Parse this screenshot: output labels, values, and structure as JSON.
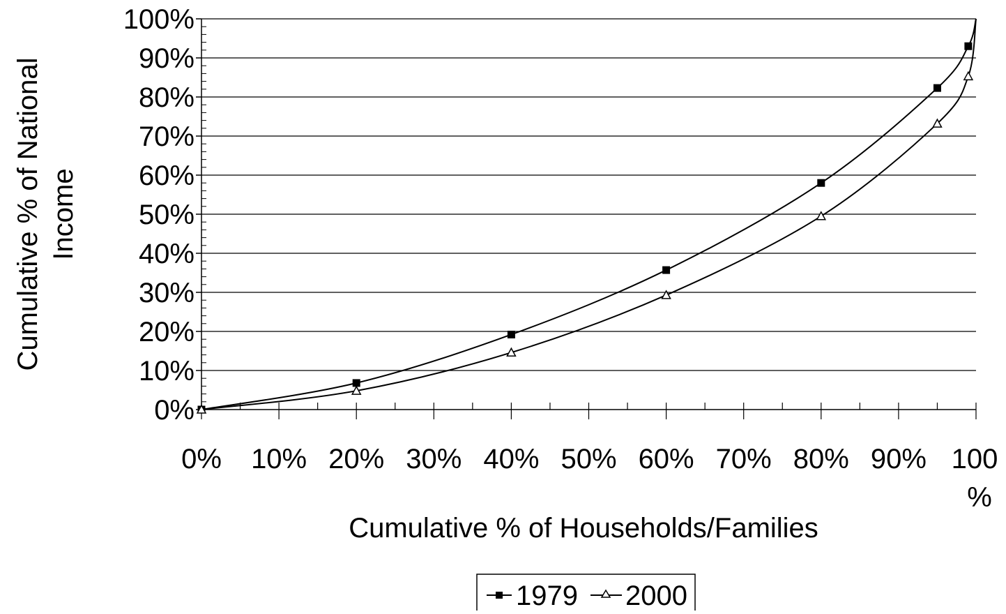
{
  "chart_data": {
    "type": "line",
    "title": "",
    "xlabel": "Cumulative % of Households/Families",
    "ylabel_line1": "Cumulative % of National",
    "ylabel_line2": "Income",
    "xlim": [
      0,
      100
    ],
    "ylim": [
      0,
      100
    ],
    "grid": "horizontal",
    "legend_position": "bottom",
    "x_ticks": [
      "0%",
      "10%",
      "20%",
      "30%",
      "40%",
      "50%",
      "60%",
      "70%",
      "80%",
      "90%",
      "100%"
    ],
    "y_ticks": [
      "0%",
      "10%",
      "20%",
      "30%",
      "40%",
      "50%",
      "60%",
      "70%",
      "80%",
      "90%",
      "100%"
    ],
    "series": [
      {
        "name": "1979",
        "marker": "filled-square",
        "color": "#000000",
        "points": [
          {
            "x": 0,
            "y": 0
          },
          {
            "x": 20,
            "y": 6.8
          },
          {
            "x": 40,
            "y": 19.2
          },
          {
            "x": 60,
            "y": 35.7
          },
          {
            "x": 80,
            "y": 58
          },
          {
            "x": 95,
            "y": 82.3
          },
          {
            "x": 99,
            "y": 93
          },
          {
            "x": 100,
            "y": 100
          }
        ]
      },
      {
        "name": "2000",
        "marker": "open-triangle",
        "color": "#000000",
        "points": [
          {
            "x": 0,
            "y": 0
          },
          {
            "x": 20,
            "y": 4.8
          },
          {
            "x": 40,
            "y": 14.6
          },
          {
            "x": 60,
            "y": 29.3
          },
          {
            "x": 80,
            "y": 49.5
          },
          {
            "x": 95,
            "y": 73.2
          },
          {
            "x": 99,
            "y": 85.3
          },
          {
            "x": 100,
            "y": 100
          }
        ]
      }
    ]
  }
}
